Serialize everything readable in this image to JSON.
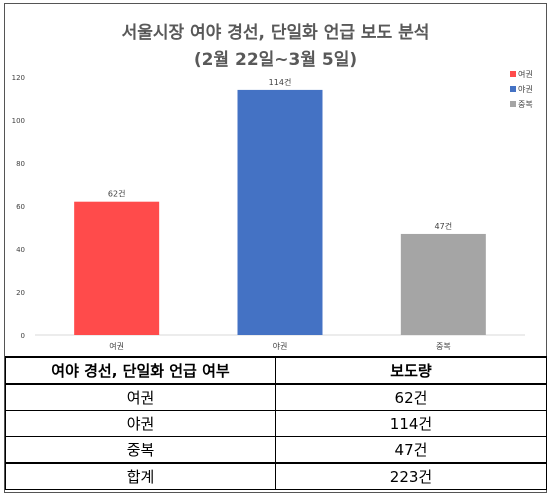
{
  "chart_data": {
    "type": "bar",
    "title": "서울시장 여야 경선, 단일화 언급 보도 분석",
    "subtitle": "(2월 22일~3월 5일)",
    "categories": [
      "여권",
      "야권",
      "중복"
    ],
    "values": [
      62,
      114,
      47
    ],
    "data_labels": [
      "62건",
      "114건",
      "47건"
    ],
    "colors": [
      "#ff4b4b",
      "#4472c4",
      "#a5a5a5"
    ],
    "legend": [
      "여권",
      "야권",
      "중복"
    ],
    "legend_position": "top-right",
    "ylim": [
      0,
      120
    ],
    "yticks": [
      0,
      20,
      40,
      60,
      80,
      100,
      120
    ],
    "grid": false
  },
  "table": {
    "headers": [
      "여야 경선, 단일화 언급 여부",
      "보도량"
    ],
    "rows": [
      [
        "여권",
        "62건"
      ],
      [
        "야권",
        "114건"
      ],
      [
        "중복",
        "47건"
      ],
      [
        "합계",
        "223건"
      ]
    ]
  }
}
